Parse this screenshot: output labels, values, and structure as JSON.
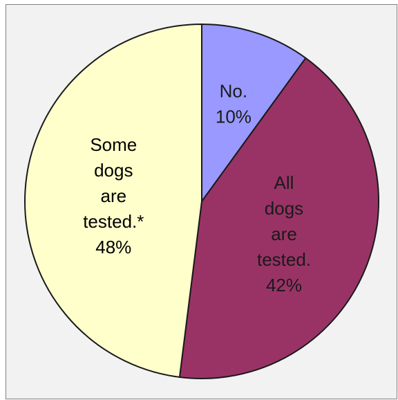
{
  "chart_data": {
    "type": "pie",
    "start_angle": "12 o'clock",
    "direction": "clockwise",
    "slices": [
      {
        "label_lines": [
          "No.",
          "10%"
        ],
        "value": 10,
        "color": "#9999ff",
        "label_color": "#1a1a1a"
      },
      {
        "label_lines": [
          "All",
          "dogs",
          "are",
          "tested.",
          "42%"
        ],
        "value": 42,
        "color": "#993366",
        "label_color": "#1a1a1a"
      },
      {
        "label_lines": [
          "Some",
          "dogs",
          "are",
          "tested.*",
          "48%"
        ],
        "value": 48,
        "color": "#ffffcc",
        "label_color": "#000000"
      }
    ]
  }
}
